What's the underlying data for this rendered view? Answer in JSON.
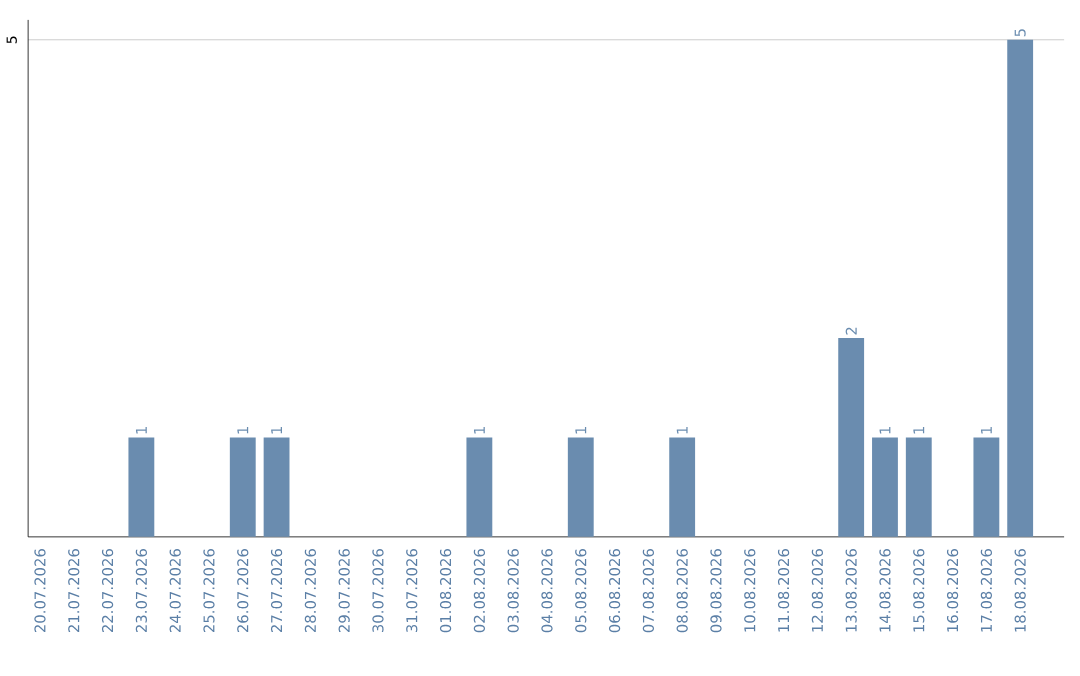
{
  "chart_data": {
    "type": "bar",
    "categories": [
      "20.07.2026",
      "21.07.2026",
      "22.07.2026",
      "23.07.2026",
      "24.07.2026",
      "25.07.2026",
      "26.07.2026",
      "27.07.2026",
      "28.07.2026",
      "29.07.2026",
      "30.07.2026",
      "31.07.2026",
      "01.08.2026",
      "02.08.2026",
      "03.08.2026",
      "04.08.2026",
      "05.08.2026",
      "06.08.2026",
      "07.08.2026",
      "08.08.2026",
      "09.08.2026",
      "10.08.2026",
      "11.08.2026",
      "12.08.2026",
      "13.08.2026",
      "14.08.2026",
      "15.08.2026",
      "16.08.2026",
      "17.08.2026",
      "18.08.2026"
    ],
    "values": [
      0,
      0,
      0,
      1,
      0,
      0,
      1,
      1,
      0,
      0,
      0,
      0,
      0,
      1,
      0,
      0,
      1,
      0,
      0,
      1,
      0,
      0,
      0,
      0,
      2,
      1,
      1,
      0,
      1,
      5
    ],
    "value_labels": [
      null,
      null,
      null,
      "1",
      null,
      null,
      "1",
      "1",
      null,
      null,
      null,
      null,
      null,
      "1",
      null,
      null,
      "1",
      null,
      null,
      "1",
      null,
      null,
      null,
      null,
      "2",
      "1",
      "1",
      null,
      "1",
      "5"
    ],
    "color": "#6a8caf",
    "ylim": [
      0,
      5.2
    ],
    "yticks": [
      5
    ],
    "grid": "y"
  }
}
